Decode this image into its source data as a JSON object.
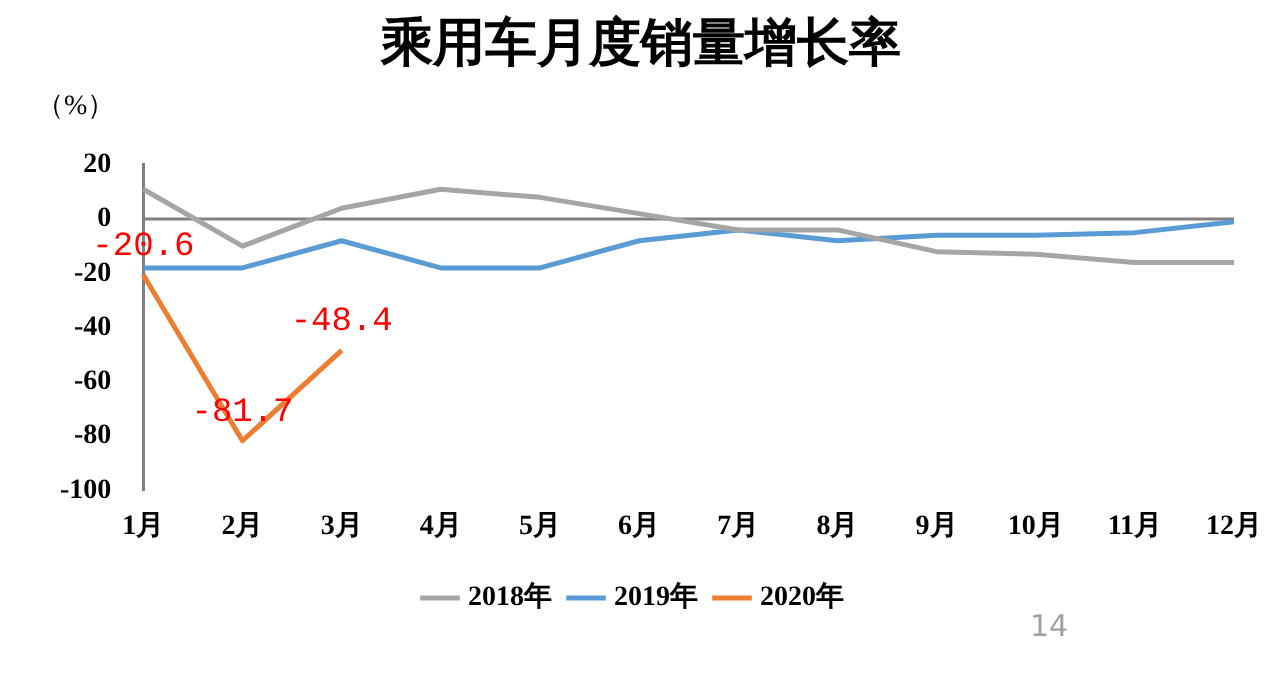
{
  "chart_data": {
    "type": "line",
    "title": "乘用车月度销量增长率",
    "ylabel": "（%）",
    "categories": [
      "1月",
      "2月",
      "3月",
      "4月",
      "5月",
      "6月",
      "7月",
      "8月",
      "9月",
      "10月",
      "11月",
      "12月"
    ],
    "series": [
      {
        "name": "2018年",
        "color": "#a5a5a5",
        "values": [
          11,
          -10,
          4,
          11,
          8,
          2,
          -4,
          -4,
          -12,
          -13,
          -16,
          -16
        ]
      },
      {
        "name": "2019年",
        "color": "#5b9bd5",
        "values": [
          -18,
          -18,
          -8,
          -18,
          -18,
          -8,
          -4,
          -8,
          -6,
          -6,
          -5,
          -1
        ]
      },
      {
        "name": "2020年",
        "color": "#ed7d31",
        "values": [
          -20.6,
          -81.7,
          -48.4,
          null,
          null,
          null,
          null,
          null,
          null,
          null,
          null,
          null
        ],
        "value_labels": [
          "-20.6",
          "-81.7",
          "-48.4",
          null,
          null,
          null,
          null,
          null,
          null,
          null,
          null,
          null
        ]
      }
    ],
    "ylim": [
      -100,
      20
    ],
    "yticks": [
      -100,
      -80,
      -60,
      -40,
      -20,
      0,
      20
    ],
    "ref_lines": [
      {
        "axis": "y",
        "value": 0,
        "color": "#808080"
      }
    ],
    "grid": false,
    "legend": "bottom",
    "marker": "none",
    "line_style": "solid",
    "annotations": [
      "14"
    ]
  }
}
